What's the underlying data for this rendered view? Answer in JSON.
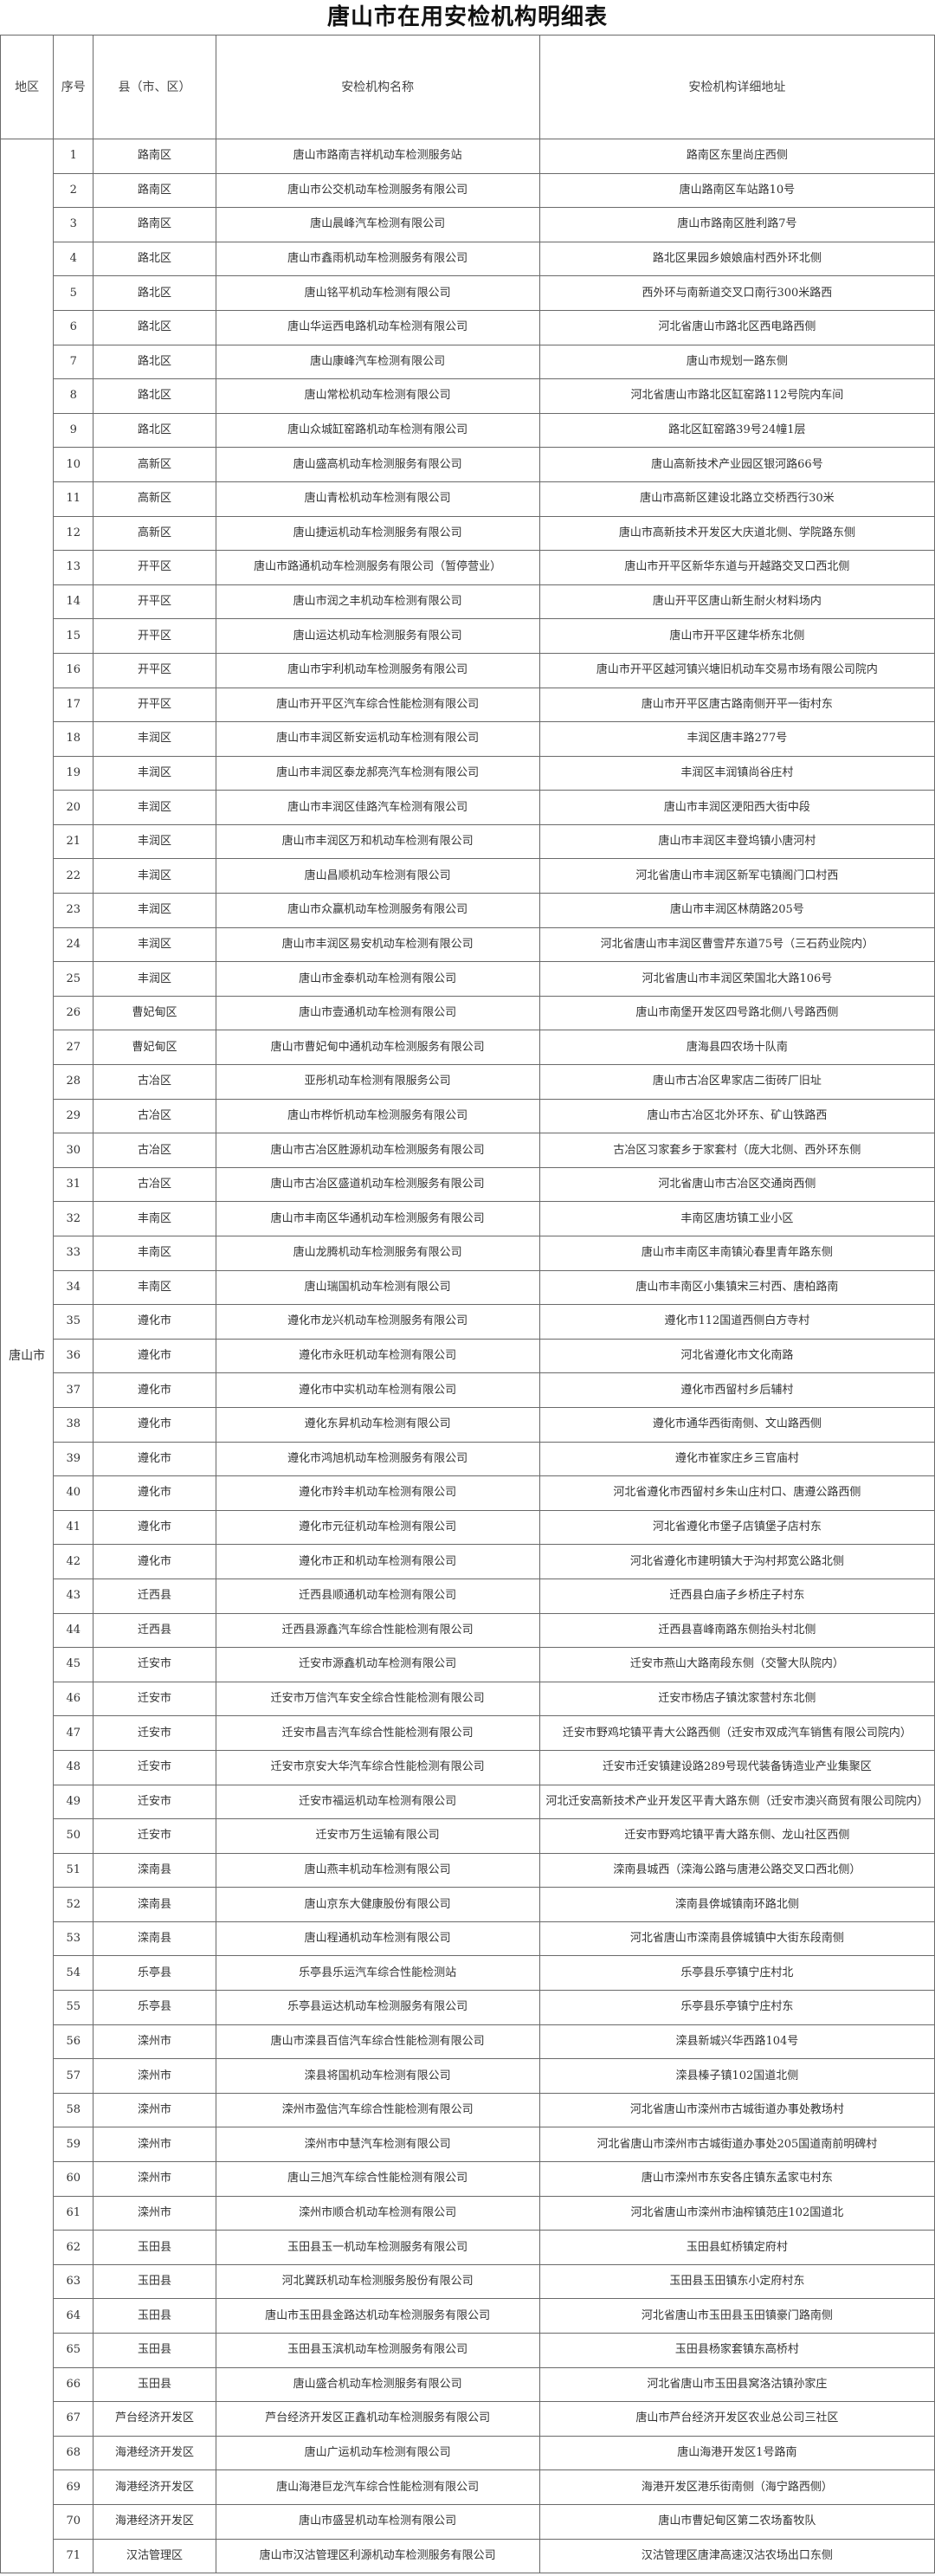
{
  "title": "唐山市在用安检机构明细表",
  "headers": [
    "地区",
    "序号",
    "县（市、区）",
    "安检机构名称",
    "安检机构详细地址"
  ],
  "region": "唐山市",
  "rows": [
    [
      "1",
      "路南区",
      "唐山市路南吉祥机动车检测服务站",
      "路南区东里尚庄西侧"
    ],
    [
      "2",
      "路南区",
      "唐山市公交机动车检测服务有限公司",
      "唐山路南区车站路10号"
    ],
    [
      "3",
      "路南区",
      "唐山晨峰汽车检测有限公司",
      "唐山市路南区胜利路7号"
    ],
    [
      "4",
      "路北区",
      "唐山市鑫雨机动车检测服务有限公司",
      "路北区果园乡娘娘庙村西外环北侧"
    ],
    [
      "5",
      "路北区",
      "唐山铭平机动车检测有限公司",
      "西外环与南新道交叉口南行300米路西"
    ],
    [
      "6",
      "路北区",
      "唐山华运西电路机动车检测有限公司",
      "河北省唐山市路北区西电路西侧"
    ],
    [
      "7",
      "路北区",
      "唐山康峰汽车检测有限公司",
      "唐山市规划一路东侧"
    ],
    [
      "8",
      "路北区",
      "唐山常松机动车检测有限公司",
      "河北省唐山市路北区缸窑路112号院内车间"
    ],
    [
      "9",
      "路北区",
      "唐山众城缸窑路机动车检测有限公司",
      "路北区缸窑路39号24幢1层"
    ],
    [
      "10",
      "高新区",
      "唐山盛高机动车检测服务有限公司",
      "唐山高新技术产业园区银河路66号"
    ],
    [
      "11",
      "高新区",
      "唐山青松机动车检测有限公司",
      "唐山市高新区建设北路立交桥西行30米"
    ],
    [
      "12",
      "高新区",
      "唐山捷运机动车检测服务有限公司",
      "唐山市高新技术开发区大庆道北侧、学院路东侧"
    ],
    [
      "13",
      "开平区",
      "唐山市路通机动车检测服务有限公司（暂停营业）",
      "唐山市开平区新华东道与开越路交叉口西北侧"
    ],
    [
      "14",
      "开平区",
      "唐山市润之丰机动车检测有限公司",
      "唐山开平区唐山新生耐火材料场内"
    ],
    [
      "15",
      "开平区",
      "唐山运达机动车检测服务有限公司",
      "唐山市开平区建华桥东北侧"
    ],
    [
      "16",
      "开平区",
      "唐山市宇利机动车检测服务有限公司",
      "唐山市开平区越河镇兴塘旧机动车交易市场有限公司院内"
    ],
    [
      "17",
      "开平区",
      "唐山市开平区汽车综合性能检测有限公司",
      "唐山市开平区唐古路南侧开平一街村东"
    ],
    [
      "18",
      "丰润区",
      "唐山市丰润区新安运机动车检测有限公司",
      "丰润区唐丰路277号"
    ],
    [
      "19",
      "丰润区",
      "唐山市丰润区泰龙郝亮汽车检测有限公司",
      "丰润区丰润镇尚谷庄村"
    ],
    [
      "20",
      "丰润区",
      "唐山市丰润区佳路汽车检测有限公司",
      "唐山市丰润区浭阳西大街中段"
    ],
    [
      "21",
      "丰润区",
      "唐山市丰润区万和机动车检测有限公司",
      "唐山市丰润区丰登坞镇小唐河村"
    ],
    [
      "22",
      "丰润区",
      "唐山昌顺机动车检测有限公司",
      "河北省唐山市丰润区新军屯镇阁门口村西"
    ],
    [
      "23",
      "丰润区",
      "唐山市众赢机动车检测服务有限公司",
      "唐山市丰润区林荫路205号"
    ],
    [
      "24",
      "丰润区",
      "唐山市丰润区易安机动车检测有限公司",
      "河北省唐山市丰润区曹雪芹东道75号（三石药业院内）"
    ],
    [
      "25",
      "丰润区",
      "唐山市金泰机动车检测有限公司",
      "河北省唐山市丰润区荣国北大路106号"
    ],
    [
      "26",
      "曹妃甸区",
      "唐山市壹通机动车检测有限公司",
      "唐山市南堡开发区四号路北侧八号路西侧"
    ],
    [
      "27",
      "曹妃甸区",
      "唐山市曹妃甸中通机动车检测服务有限公司",
      "唐海县四农场十队南"
    ],
    [
      "28",
      "古冶区",
      "亚彤机动车检测有限服务公司",
      "唐山市古冶区卑家店二街砖厂旧址"
    ],
    [
      "29",
      "古冶区",
      "唐山市桦忻机动车检测服务有限公司",
      "唐山市古冶区北外环东、矿山铁路西"
    ],
    [
      "30",
      "古冶区",
      "唐山市古冶区胜源机动车检测服务有限公司",
      "古冶区习家套乡于家套村（庞大北侧、西外环东侧"
    ],
    [
      "31",
      "古冶区",
      "唐山市古冶区盛道机动车检测服务有限公司",
      "河北省唐山市古冶区交通岗西侧"
    ],
    [
      "32",
      "丰南区",
      "唐山市丰南区华通机动车检测服务有限公司",
      "丰南区唐坊镇工业小区"
    ],
    [
      "33",
      "丰南区",
      "唐山龙腾机动车检测服务有限公司",
      "唐山市丰南区丰南镇沁春里青年路东侧"
    ],
    [
      "34",
      "丰南区",
      "唐山瑞国机动车检测有限公司",
      "唐山市丰南区小集镇宋三村西、唐柏路南"
    ],
    [
      "35",
      "遵化市",
      "遵化市龙兴机动车检测服务有限公司",
      "遵化市112国道西侧白方寺村"
    ],
    [
      "36",
      "遵化市",
      "遵化市永旺机动车检测有限公司",
      "河北省遵化市文化南路"
    ],
    [
      "37",
      "遵化市",
      "遵化市中实机动车检测有限公司",
      "遵化市西留村乡后辅村"
    ],
    [
      "38",
      "遵化市",
      "遵化东昇机动车检测有限公司",
      "遵化市通华西街南侧、文山路西侧"
    ],
    [
      "39",
      "遵化市",
      "遵化市鸿旭机动车检测服务有限公司",
      "遵化市崔家庄乡三官庙村"
    ],
    [
      "40",
      "遵化市",
      "遵化市羚丰机动车检测有限公司",
      "河北省遵化市西留村乡朱山庄村口、唐遵公路西侧"
    ],
    [
      "41",
      "遵化市",
      "遵化市元征机动车检测有限公司",
      "河北省遵化市堡子店镇堡子店村东"
    ],
    [
      "42",
      "遵化市",
      "遵化市正和机动车检测有限公司",
      "河北省遵化市建明镇大于沟村邦宽公路北侧"
    ],
    [
      "43",
      "迁西县",
      "迁西县顺通机动车检测有限公司",
      "迁西县白庙子乡桥庄子村东"
    ],
    [
      "44",
      "迁西县",
      "迁西县源鑫汽车综合性能检测有限公司",
      "迁西县喜峰南路东侧抬头村北侧"
    ],
    [
      "45",
      "迁安市",
      "迁安市源鑫机动车检测有限公司",
      "迁安市燕山大路南段东侧（交警大队院内）"
    ],
    [
      "46",
      "迁安市",
      "迁安市万信汽车安全综合性能检测有限公司",
      "迁安市杨店子镇沈家营村东北侧"
    ],
    [
      "47",
      "迁安市",
      "迁安市昌吉汽车综合性能检测有限公司",
      "迁安市野鸡坨镇平青大公路西侧（迁安市双成汽车销售有限公司院内）"
    ],
    [
      "48",
      "迁安市",
      "迁安市京安大华汽车综合性能检测有限公司",
      "迁安市迁安镇建设路289号现代装备铸造业产业集聚区"
    ],
    [
      "49",
      "迁安市",
      "迁安市福运机动车检测有限公司",
      "河北迁安高新技术产业开发区平青大路东侧（迁安市澳兴商贸有限公司院内）"
    ],
    [
      "50",
      "迁安市",
      "迁安市万生运输有限公司",
      "迁安市野鸡坨镇平青大路东侧、龙山社区西侧"
    ],
    [
      "51",
      "滦南县",
      "唐山燕丰机动车检测有限公司",
      "滦南县城西（滦海公路与唐港公路交叉口西北侧）"
    ],
    [
      "52",
      "滦南县",
      "唐山京东大健康股份有限公司",
      "滦南县倴城镇南环路北侧"
    ],
    [
      "53",
      "滦南县",
      "唐山程通机动车检测有限公司",
      "河北省唐山市滦南县倴城镇中大街东段南侧"
    ],
    [
      "54",
      "乐亭县",
      "乐亭县乐运汽车综合性能检测站",
      "乐亭县乐亭镇宁庄村北"
    ],
    [
      "55",
      "乐亭县",
      "乐亭县运达机动车检测服务有限公司",
      "乐亭县乐亭镇宁庄村东"
    ],
    [
      "56",
      "滦州市",
      "唐山市滦县百信汽车综合性能检测有限公司",
      "滦县新城兴华西路104号"
    ],
    [
      "57",
      "滦州市",
      "滦县将国机动车检测有限公司",
      "滦县榛子镇102国道北侧"
    ],
    [
      "58",
      "滦州市",
      "滦州市盈信汽车综合性能检测有限公司",
      "河北省唐山市滦州市古城街道办事处教场村"
    ],
    [
      "59",
      "滦州市",
      "滦州市中慧汽车检测有限公司",
      "河北省唐山市滦州市古城街道办事处205国道南前明碑村"
    ],
    [
      "60",
      "滦州市",
      "唐山三旭汽车综合性能检测有限公司",
      "唐山市滦州市东安各庄镇东孟家屯村东"
    ],
    [
      "61",
      "滦州市",
      "滦州市顺合机动车检测有限公司",
      "河北省唐山市滦州市油榨镇范庄102国道北"
    ],
    [
      "62",
      "玉田县",
      "玉田县玉一机动车检测服务有限公司",
      "玉田县虹桥镇定府村"
    ],
    [
      "63",
      "玉田县",
      "河北冀跃机动车检测服务股份有限公司",
      "玉田县玉田镇东小定府村东"
    ],
    [
      "64",
      "玉田县",
      "唐山市玉田县金路达机动车检测服务有限公司",
      "河北省唐山市玉田县玉田镇豪门路南侧"
    ],
    [
      "65",
      "玉田县",
      "玉田县玉滨机动车检测服务有限公司",
      "玉田县杨家套镇东高桥村"
    ],
    [
      "66",
      "玉田县",
      "唐山盛合机动车检测服务有限公司",
      "河北省唐山市玉田县窝洛沽镇孙家庄"
    ],
    [
      "67",
      "芦台经济开发区",
      "芦台经济开发区正鑫机动车检测服务有限公司",
      "唐山市芦台经济开发区农业总公司三社区"
    ],
    [
      "68",
      "海港经济开发区",
      "唐山广运机动车检测有限公司",
      "唐山海港开发区1号路南"
    ],
    [
      "69",
      "海港经济开发区",
      "唐山海港巨龙汽车综合性能检测有限公司",
      "海港开发区港乐街南侧（海宁路西侧）"
    ],
    [
      "70",
      "海港经济开发区",
      "唐山市盛昱机动车检测有限公司",
      "唐山市曹妃甸区第二农场畜牧队"
    ],
    [
      "71",
      "汉沽管理区",
      "唐山市汉沽管理区利源机动车检测服务有限公司",
      "汉沽管理区唐津高速汉沽农场出口东侧"
    ]
  ]
}
